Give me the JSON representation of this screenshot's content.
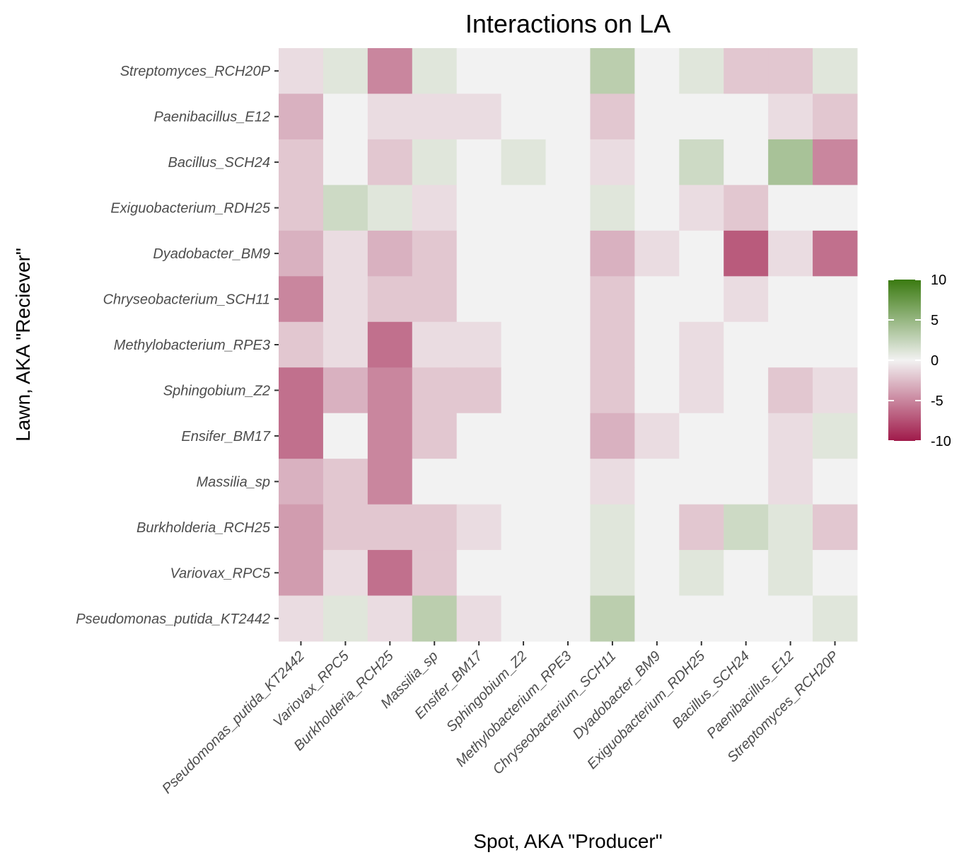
{
  "chart_data": {
    "type": "heatmap",
    "title": "Interactions on LA",
    "xlabel": "Spot, AKA \"Producer\"",
    "ylabel": "Lawn, AKA \"Reciever\"",
    "x_categories": [
      "Pseudomonas_putida_KT2442",
      "Variovax_RPC5",
      "Burkholderia_RCH25",
      "Massilia_sp",
      "Ensifer_BM17",
      "Sphingobium_Z2",
      "Methylobacterium_RPE3",
      "Chryseobacterium_SCH11",
      "Dyadobacter_BM9",
      "Exiguobacterium_RDH25",
      "Bacillus_SCH24",
      "Paenibacillus_E12",
      "Streptomyces_RCH20P"
    ],
    "y_categories": [
      "Streptomyces_RCH20P",
      "Paenibacillus_E12",
      "Bacillus_SCH24",
      "Exiguobacterium_RDH25",
      "Dyadobacter_BM9",
      "Chryseobacterium_SCH11",
      "Methylobacterium_RPE3",
      "Sphingobium_Z2",
      "Ensifer_BM17",
      "Massilia_sp",
      "Burkholderia_RCH25",
      "Variovax_RPC5",
      "Pseudomonas_putida_KT2442"
    ],
    "values": [
      [
        -1,
        1,
        -5,
        1,
        0,
        0,
        0,
        3,
        0,
        1,
        -2,
        -2,
        1
      ],
      [
        -3,
        0,
        -1,
        -1,
        -1,
        0,
        0,
        -2,
        0,
        0,
        0,
        -1,
        -2
      ],
      [
        -2,
        0,
        -2,
        1,
        0,
        1,
        0,
        -1,
        0,
        2,
        0,
        4,
        -5
      ],
      [
        -2,
        2,
        1,
        -1,
        0,
        0,
        0,
        1,
        0,
        -1,
        -2,
        0,
        0
      ],
      [
        -3,
        -1,
        -3,
        -2,
        0,
        0,
        0,
        -3,
        -1,
        0,
        -7,
        -1,
        -6
      ],
      [
        -5,
        -1,
        -2,
        -2,
        0,
        0,
        0,
        -2,
        0,
        0,
        -1,
        0,
        0
      ],
      [
        -2,
        -1,
        -6,
        -1,
        -1,
        0,
        0,
        -2,
        0,
        -1,
        0,
        0,
        0
      ],
      [
        -6,
        -3,
        -5,
        -2,
        -2,
        0,
        0,
        -2,
        0,
        -1,
        0,
        -2,
        -1
      ],
      [
        -6,
        0,
        -5,
        -2,
        0,
        0,
        0,
        -3,
        -1,
        0,
        0,
        -1,
        1
      ],
      [
        -3,
        -2,
        -5,
        0,
        0,
        0,
        0,
        -1,
        0,
        0,
        0,
        -1,
        0
      ],
      [
        -4,
        -2,
        -2,
        -2,
        -1,
        0,
        0,
        1,
        0,
        -2,
        2,
        1,
        -2
      ],
      [
        -4,
        -1,
        -6,
        -2,
        0,
        0,
        0,
        1,
        0,
        1,
        0,
        1,
        0
      ],
      [
        -1,
        1,
        -1,
        3,
        -1,
        0,
        0,
        3,
        0,
        0,
        0,
        0,
        1
      ]
    ],
    "colorscale": {
      "min": -10,
      "max": 10,
      "low_color": "#a01a4a",
      "mid_color": "#f2f2f2",
      "high_color": "#3a7a10",
      "ticks": [
        10,
        5,
        0,
        -5,
        -10
      ]
    },
    "grid": false,
    "legend_position": "right"
  }
}
